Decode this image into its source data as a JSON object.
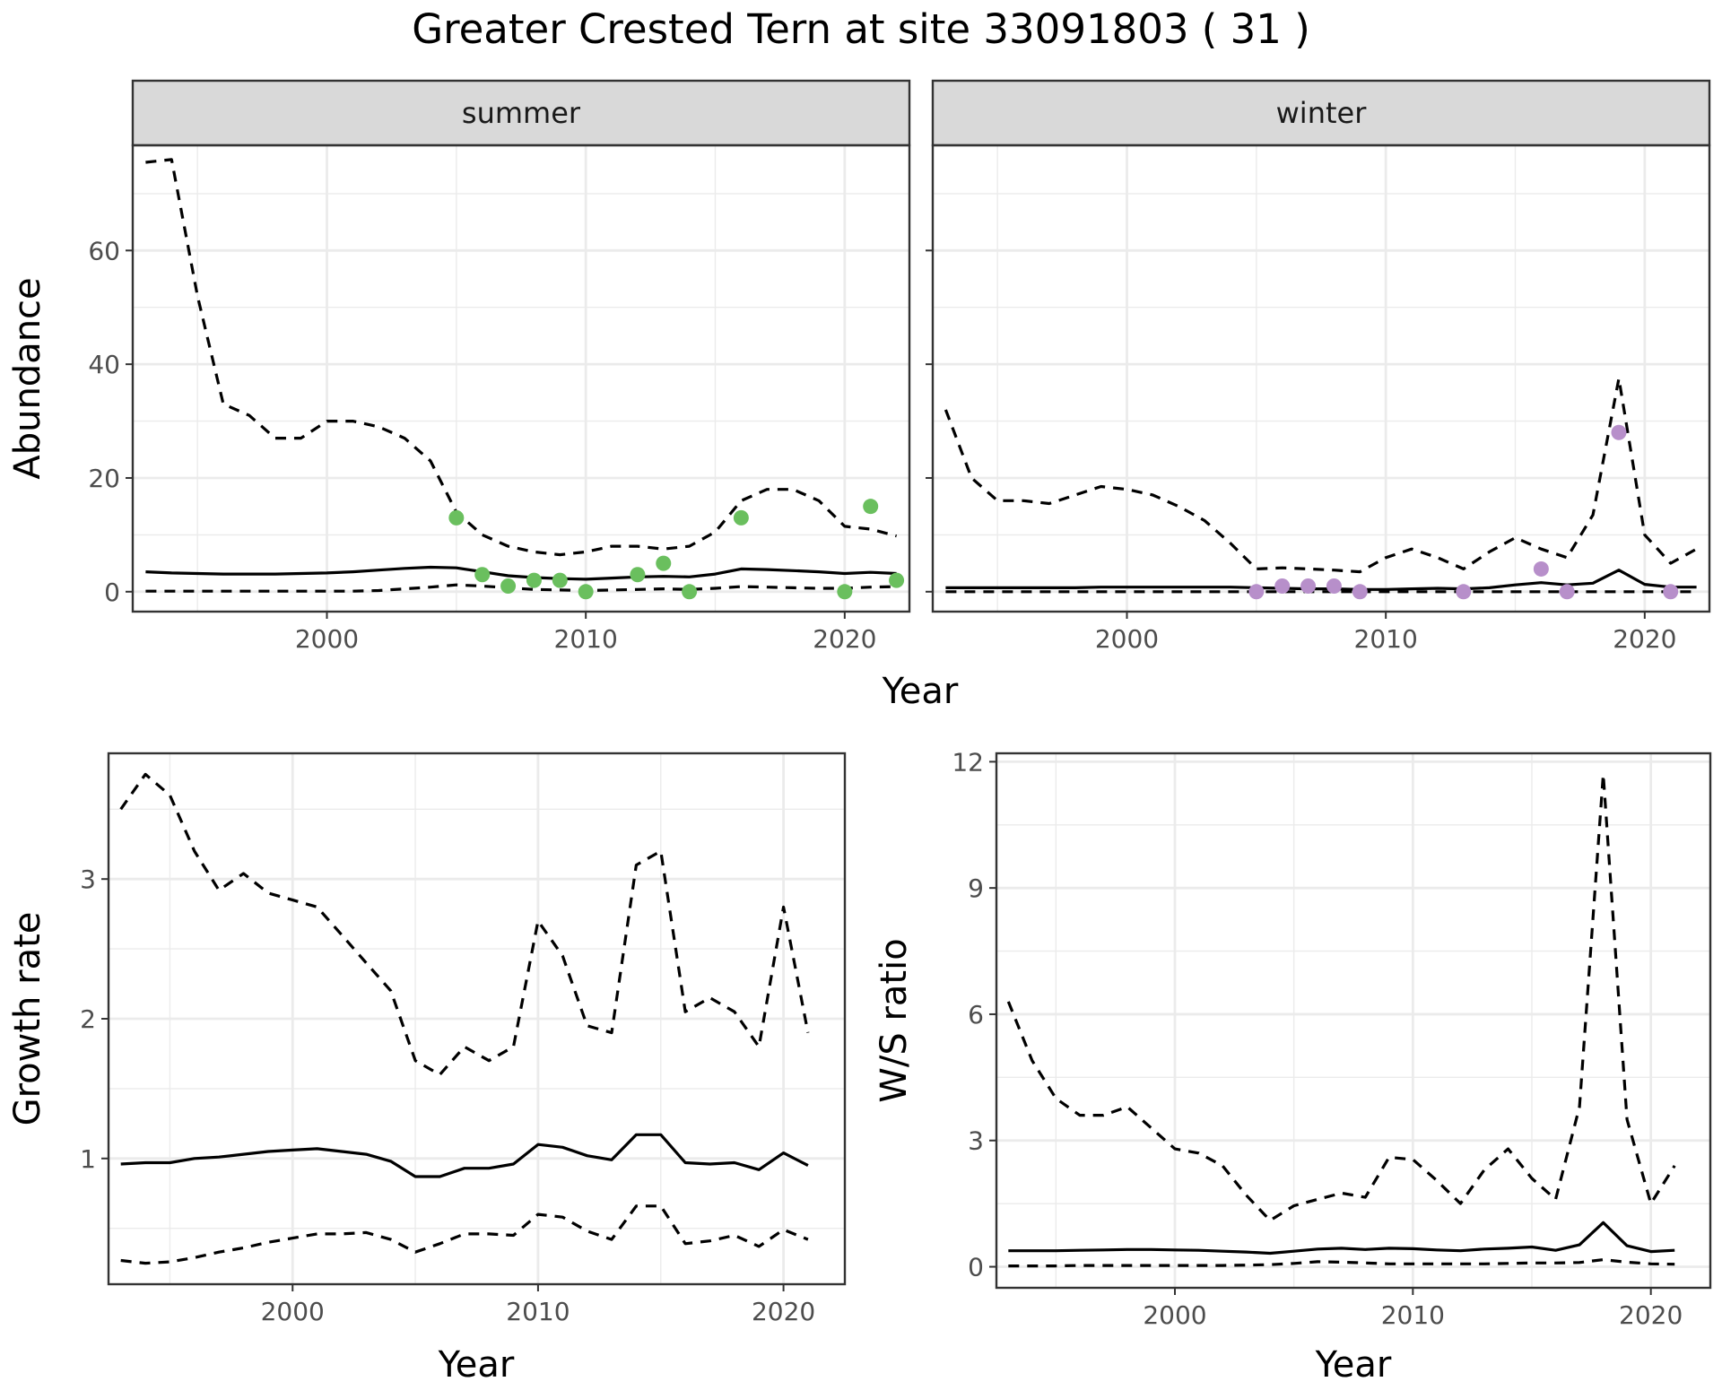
{
  "title": "Greater Crested Tern at site 33091803 ( 31 )",
  "colors": {
    "summer_points": "#6abf5e",
    "winter_points": "#b78fca",
    "line": "#000000",
    "strip_fill": "#d9d9d9",
    "grid": "#ebebeb"
  },
  "chart_data": [
    {
      "id": "abundance",
      "type": "line",
      "ylabel": "Abundance",
      "xlabel": "Year",
      "xlim": [
        1992.5,
        2022.5
      ],
      "ylim": [
        -3.5,
        78.5
      ],
      "x_ticks": [
        2000,
        2010,
        2020
      ],
      "y_ticks": [
        0,
        20,
        40,
        60
      ],
      "panels": [
        {
          "label": "summer",
          "series": [
            {
              "role": "upper",
              "style": "dashed",
              "x": [
                1993,
                1994,
                1995,
                1996,
                1997,
                1998,
                1999,
                2000,
                2001,
                2002,
                2003,
                2004,
                2005,
                2006,
                2007,
                2008,
                2009,
                2010,
                2011,
                2012,
                2013,
                2014,
                2015,
                2016,
                2017,
                2018,
                2019,
                2020,
                2021,
                2022
              ],
              "y": [
                75.5,
                76,
                52,
                33,
                31,
                27,
                27,
                30,
                30,
                29,
                27,
                23,
                14,
                10,
                8,
                7,
                6.5,
                7,
                8,
                8,
                7.5,
                8,
                10.5,
                16,
                18,
                18,
                16,
                11.5,
                11,
                9.8
              ]
            },
            {
              "role": "mean",
              "style": "solid",
              "x": [
                1993,
                1994,
                1995,
                1996,
                1997,
                1998,
                1999,
                2000,
                2001,
                2002,
                2003,
                2004,
                2005,
                2006,
                2007,
                2008,
                2009,
                2010,
                2011,
                2012,
                2013,
                2014,
                2015,
                2016,
                2017,
                2018,
                2019,
                2020,
                2021,
                2022
              ],
              "y": [
                3.5,
                3.3,
                3.2,
                3.1,
                3.1,
                3.1,
                3.2,
                3.3,
                3.5,
                3.8,
                4.1,
                4.3,
                4.2,
                3.5,
                2.8,
                2.5,
                2.3,
                2.2,
                2.4,
                2.6,
                2.7,
                2.6,
                3.1,
                4.0,
                3.9,
                3.7,
                3.5,
                3.2,
                3.4,
                3.2
              ]
            },
            {
              "role": "lower",
              "style": "dashed",
              "x": [
                1993,
                1994,
                1995,
                1996,
                1997,
                1998,
                1999,
                2000,
                2001,
                2002,
                2003,
                2004,
                2005,
                2006,
                2007,
                2008,
                2009,
                2010,
                2011,
                2012,
                2013,
                2014,
                2015,
                2016,
                2017,
                2018,
                2019,
                2020,
                2021,
                2022
              ],
              "y": [
                0.1,
                0.1,
                0.1,
                0.1,
                0.1,
                0.1,
                0.1,
                0.1,
                0.1,
                0.2,
                0.5,
                0.8,
                1.2,
                1.0,
                0.7,
                0.4,
                0.3,
                0.2,
                0.3,
                0.4,
                0.5,
                0.4,
                0.6,
                0.9,
                0.8,
                0.7,
                0.6,
                0.6,
                0.8,
                0.9
              ]
            }
          ],
          "points": {
            "x": [
              2005,
              2006,
              2007,
              2008,
              2009,
              2010,
              2012,
              2013,
              2014,
              2016,
              2020,
              2021,
              2022
            ],
            "y": [
              13,
              3,
              1,
              2,
              2,
              0,
              3,
              5,
              0,
              13,
              0,
              15,
              2
            ]
          }
        },
        {
          "label": "winter",
          "series": [
            {
              "role": "upper",
              "style": "dashed",
              "x": [
                1993,
                1994,
                1995,
                1996,
                1997,
                1998,
                1999,
                2000,
                2001,
                2002,
                2003,
                2004,
                2005,
                2006,
                2007,
                2008,
                2009,
                2010,
                2011,
                2012,
                2013,
                2014,
                2015,
                2016,
                2017,
                2018,
                2019,
                2020,
                2021,
                2022
              ],
              "y": [
                32,
                20,
                16,
                16,
                15.5,
                17,
                18.5,
                18,
                17,
                15,
                12.5,
                8.5,
                4,
                4.2,
                4,
                3.8,
                3.5,
                6,
                7.5,
                6,
                4,
                7,
                9.5,
                7.5,
                6,
                13.5,
                37.5,
                10,
                5,
                7.5
              ]
            },
            {
              "role": "mean",
              "style": "solid",
              "x": [
                1993,
                1994,
                1995,
                1996,
                1997,
                1998,
                1999,
                2000,
                2001,
                2002,
                2003,
                2004,
                2005,
                2006,
                2007,
                2008,
                2009,
                2010,
                2011,
                2012,
                2013,
                2014,
                2015,
                2016,
                2017,
                2018,
                2019,
                2020,
                2021,
                2022
              ],
              "y": [
                0.7,
                0.7,
                0.7,
                0.7,
                0.7,
                0.7,
                0.8,
                0.8,
                0.8,
                0.8,
                0.8,
                0.8,
                0.7,
                0.6,
                0.5,
                0.5,
                0.4,
                0.4,
                0.5,
                0.6,
                0.5,
                0.7,
                1.2,
                1.6,
                1.2,
                1.5,
                3.8,
                1.3,
                0.8,
                0.8
              ]
            },
            {
              "role": "lower",
              "style": "dashed",
              "x": [
                1993,
                1994,
                1995,
                1996,
                1997,
                1998,
                1999,
                2000,
                2001,
                2002,
                2003,
                2004,
                2005,
                2006,
                2007,
                2008,
                2009,
                2010,
                2011,
                2012,
                2013,
                2014,
                2015,
                2016,
                2017,
                2018,
                2019,
                2020,
                2021,
                2022
              ],
              "y": [
                0,
                0,
                0,
                0,
                0,
                0,
                0,
                0,
                0,
                0,
                0,
                0,
                0,
                0,
                0,
                0,
                0,
                0,
                0,
                0,
                0,
                0,
                0,
                0,
                0,
                0,
                0,
                0,
                0,
                0
              ]
            }
          ],
          "points": {
            "x": [
              2005,
              2006,
              2007,
              2008,
              2009,
              2013,
              2016,
              2017,
              2019,
              2021
            ],
            "y": [
              0,
              1,
              1,
              1,
              0,
              0,
              4,
              0,
              28,
              0
            ]
          }
        }
      ]
    },
    {
      "id": "growth",
      "type": "line",
      "ylabel": "Growth rate",
      "xlabel": "Year",
      "xlim": [
        1992.5,
        2022.5
      ],
      "ylim": [
        0.1,
        3.9
      ],
      "x_ticks": [
        2000,
        2010,
        2020
      ],
      "y_ticks": [
        1,
        2,
        3
      ],
      "series": [
        {
          "role": "upper",
          "style": "dashed",
          "x": [
            1993,
            1994,
            1995,
            1996,
            1997,
            1998,
            1999,
            2000,
            2001,
            2002,
            2003,
            2004,
            2005,
            2006,
            2007,
            2008,
            2009,
            2010,
            2011,
            2012,
            2013,
            2014,
            2015,
            2016,
            2017,
            2018,
            2019,
            2020,
            2021
          ],
          "y": [
            3.5,
            3.75,
            3.6,
            3.2,
            2.92,
            3.04,
            2.9,
            2.85,
            2.8,
            2.6,
            2.4,
            2.2,
            1.7,
            1.6,
            1.8,
            1.7,
            1.8,
            2.7,
            2.45,
            1.95,
            1.9,
            3.1,
            3.2,
            2.05,
            2.15,
            2.05,
            1.8,
            2.8,
            1.9
          ]
        },
        {
          "role": "mean",
          "style": "solid",
          "x": [
            1993,
            1994,
            1995,
            1996,
            1997,
            1998,
            1999,
            2000,
            2001,
            2002,
            2003,
            2004,
            2005,
            2006,
            2007,
            2008,
            2009,
            2010,
            2011,
            2012,
            2013,
            2014,
            2015,
            2016,
            2017,
            2018,
            2019,
            2020,
            2021
          ],
          "y": [
            0.96,
            0.97,
            0.97,
            1.0,
            1.01,
            1.03,
            1.05,
            1.06,
            1.07,
            1.05,
            1.03,
            0.98,
            0.87,
            0.87,
            0.93,
            0.93,
            0.96,
            1.1,
            1.08,
            1.02,
            0.99,
            1.17,
            1.17,
            0.97,
            0.96,
            0.97,
            0.92,
            1.04,
            0.95
          ]
        },
        {
          "role": "lower",
          "style": "dashed",
          "x": [
            1993,
            1994,
            1995,
            1996,
            1997,
            1998,
            1999,
            2000,
            2001,
            2002,
            2003,
            2004,
            2005,
            2006,
            2007,
            2008,
            2009,
            2010,
            2011,
            2012,
            2013,
            2014,
            2015,
            2016,
            2017,
            2018,
            2019,
            2020,
            2021
          ],
          "y": [
            0.27,
            0.25,
            0.26,
            0.29,
            0.33,
            0.36,
            0.4,
            0.43,
            0.46,
            0.46,
            0.47,
            0.42,
            0.33,
            0.39,
            0.46,
            0.46,
            0.45,
            0.6,
            0.58,
            0.48,
            0.42,
            0.66,
            0.66,
            0.39,
            0.41,
            0.45,
            0.37,
            0.49,
            0.42
          ]
        }
      ]
    },
    {
      "id": "ws_ratio",
      "type": "line",
      "ylabel": "W/S ratio",
      "xlabel": "Year",
      "xlim": [
        1992.5,
        2022.5
      ],
      "ylim": [
        -0.5,
        12.2
      ],
      "x_ticks": [
        2000,
        2010,
        2020
      ],
      "y_ticks": [
        0,
        3,
        6,
        9,
        12
      ],
      "series": [
        {
          "role": "upper",
          "style": "dashed",
          "x": [
            1993,
            1994,
            1995,
            1996,
            1997,
            1998,
            1999,
            2000,
            2001,
            2002,
            2003,
            2004,
            2005,
            2006,
            2007,
            2008,
            2009,
            2010,
            2011,
            2012,
            2013,
            2014,
            2015,
            2016,
            2017,
            2018,
            2019,
            2020,
            2021
          ],
          "y": [
            6.3,
            4.9,
            4.0,
            3.6,
            3.6,
            3.8,
            3.3,
            2.8,
            2.7,
            2.4,
            1.7,
            1.1,
            1.45,
            1.6,
            1.75,
            1.65,
            2.6,
            2.55,
            2.05,
            1.5,
            2.3,
            2.8,
            2.1,
            1.6,
            3.8,
            11.7,
            3.5,
            1.5,
            2.4
          ]
        },
        {
          "role": "mean",
          "style": "solid",
          "x": [
            1993,
            1994,
            1995,
            1996,
            1997,
            1998,
            1999,
            2000,
            2001,
            2002,
            2003,
            2004,
            2005,
            2006,
            2007,
            2008,
            2009,
            2010,
            2011,
            2012,
            2013,
            2014,
            2015,
            2016,
            2017,
            2018,
            2019,
            2020,
            2021
          ],
          "y": [
            0.38,
            0.38,
            0.38,
            0.39,
            0.4,
            0.41,
            0.41,
            0.4,
            0.39,
            0.37,
            0.35,
            0.32,
            0.37,
            0.42,
            0.44,
            0.41,
            0.44,
            0.43,
            0.4,
            0.38,
            0.42,
            0.44,
            0.47,
            0.39,
            0.52,
            1.05,
            0.5,
            0.36,
            0.39
          ]
        },
        {
          "role": "lower",
          "style": "dashed",
          "x": [
            1993,
            1994,
            1995,
            1996,
            1997,
            1998,
            1999,
            2000,
            2001,
            2002,
            2003,
            2004,
            2005,
            2006,
            2007,
            2008,
            2009,
            2010,
            2011,
            2012,
            2013,
            2014,
            2015,
            2016,
            2017,
            2018,
            2019,
            2020,
            2021
          ],
          "y": [
            0.02,
            0.02,
            0.02,
            0.03,
            0.03,
            0.03,
            0.03,
            0.03,
            0.03,
            0.03,
            0.04,
            0.05,
            0.08,
            0.12,
            0.11,
            0.09,
            0.07,
            0.07,
            0.07,
            0.07,
            0.07,
            0.08,
            0.09,
            0.09,
            0.1,
            0.17,
            0.11,
            0.07,
            0.06
          ]
        }
      ]
    }
  ]
}
